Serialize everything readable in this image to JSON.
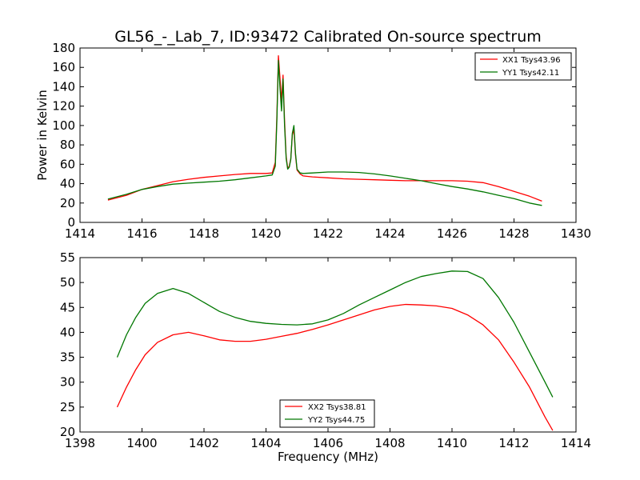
{
  "chart_data": [
    {
      "type": "line",
      "title": "GL56_-_Lab_7, ID:93472 Calibrated On-source spectrum",
      "xlabel": "",
      "ylabel": "Power in Kelvin",
      "xlim": [
        1414,
        1430
      ],
      "ylim": [
        0,
        180
      ],
      "xticks": [
        1414,
        1416,
        1418,
        1420,
        1422,
        1424,
        1426,
        1428,
        1430
      ],
      "yticks": [
        0,
        20,
        40,
        60,
        80,
        100,
        120,
        140,
        160,
        180
      ],
      "grid": false,
      "legend": "top-right",
      "series": [
        {
          "name": "XX1 Tsys43.96",
          "color": "#ff0000",
          "x": [
            1414.9,
            1415.5,
            1416,
            1416.5,
            1417,
            1417.5,
            1418,
            1418.5,
            1419,
            1419.5,
            1420,
            1420.2,
            1420.3,
            1420.35,
            1420.4,
            1420.45,
            1420.5,
            1420.55,
            1420.6,
            1420.65,
            1420.7,
            1420.75,
            1420.8,
            1420.85,
            1420.9,
            1420.95,
            1421,
            1421.1,
            1421.2,
            1421.5,
            1422,
            1422.5,
            1423,
            1423.5,
            1424,
            1424.5,
            1425,
            1425.5,
            1426,
            1426.5,
            1427,
            1427.5,
            1428,
            1428.5,
            1428.9
          ],
          "y": [
            23,
            28,
            34,
            38,
            42,
            44.5,
            46.5,
            48,
            49.5,
            50.5,
            50.5,
            51,
            62,
            110,
            172,
            150,
            125,
            152,
            105,
            68,
            56,
            58,
            66,
            90,
            96,
            70,
            54,
            50,
            48,
            47,
            46,
            45,
            44.5,
            44,
            43.5,
            43,
            43,
            43,
            43,
            42.5,
            41,
            37,
            32,
            27,
            22
          ]
        },
        {
          "name": "YY1 Tsys42.11",
          "color": "#007700",
          "x": [
            1414.9,
            1415.5,
            1416,
            1416.5,
            1417,
            1417.5,
            1418,
            1418.5,
            1419,
            1419.5,
            1420,
            1420.2,
            1420.3,
            1420.35,
            1420.4,
            1420.45,
            1420.5,
            1420.55,
            1420.6,
            1420.65,
            1420.7,
            1420.75,
            1420.8,
            1420.85,
            1420.9,
            1420.95,
            1421,
            1421.1,
            1421.2,
            1421.5,
            1422,
            1422.5,
            1423,
            1423.5,
            1424,
            1424.5,
            1425,
            1425.5,
            1426,
            1426.5,
            1427,
            1427.5,
            1428,
            1428.5,
            1428.9
          ],
          "y": [
            24,
            29,
            34,
            37,
            39.5,
            40.5,
            41.5,
            42.5,
            44,
            46,
            48,
            49,
            58,
            105,
            167,
            140,
            115,
            148,
            100,
            66,
            55,
            57,
            65,
            92,
            100,
            72,
            55,
            51,
            50.5,
            51,
            52,
            52,
            51.5,
            50,
            48,
            45.5,
            43,
            40,
            37,
            34.5,
            31.5,
            28,
            24.5,
            20,
            17.5
          ]
        }
      ]
    },
    {
      "type": "line",
      "title": "",
      "xlabel": "Frequency (MHz)",
      "ylabel": "",
      "xlim": [
        1398,
        1414
      ],
      "ylim": [
        20,
        55
      ],
      "xticks": [
        1398,
        1400,
        1402,
        1404,
        1406,
        1408,
        1410,
        1412,
        1414
      ],
      "yticks": [
        20,
        25,
        30,
        35,
        40,
        45,
        50,
        55
      ],
      "grid": false,
      "legend": "bottom-center",
      "series": [
        {
          "name": "XX2 Tsys38.81",
          "color": "#ff0000",
          "x": [
            1399.2,
            1399.5,
            1399.8,
            1400.1,
            1400.5,
            1401,
            1401.5,
            1402,
            1402.5,
            1403,
            1403.5,
            1404,
            1404.5,
            1405,
            1405.5,
            1406,
            1406.5,
            1407,
            1407.5,
            1408,
            1408.5,
            1409,
            1409.5,
            1410,
            1410.5,
            1411,
            1411.5,
            1412,
            1412.5,
            1413,
            1413.25
          ],
          "y": [
            25,
            29,
            32.5,
            35.5,
            38,
            39.5,
            40,
            39.3,
            38.5,
            38.2,
            38.2,
            38.6,
            39.2,
            39.8,
            40.6,
            41.5,
            42.5,
            43.5,
            44.5,
            45.2,
            45.6,
            45.5,
            45.3,
            44.8,
            43.5,
            41.5,
            38.5,
            34,
            29,
            23,
            20.3
          ]
        },
        {
          "name": "YY2 Tsys44.75",
          "color": "#007700",
          "x": [
            1399.2,
            1399.5,
            1399.8,
            1400.1,
            1400.5,
            1401,
            1401.5,
            1402,
            1402.5,
            1403,
            1403.5,
            1404,
            1404.5,
            1405,
            1405.5,
            1406,
            1406.5,
            1407,
            1407.5,
            1408,
            1408.5,
            1409,
            1409.5,
            1410,
            1410.5,
            1411,
            1411.5,
            1412,
            1412.5,
            1413,
            1413.25
          ],
          "y": [
            35,
            39.5,
            43,
            45.8,
            47.8,
            48.8,
            47.8,
            46,
            44.2,
            43,
            42.2,
            41.8,
            41.6,
            41.5,
            41.7,
            42.5,
            43.8,
            45.5,
            47,
            48.5,
            50,
            51.2,
            51.8,
            52.3,
            52.2,
            50.8,
            47,
            42,
            36,
            30,
            27
          ]
        }
      ]
    }
  ]
}
